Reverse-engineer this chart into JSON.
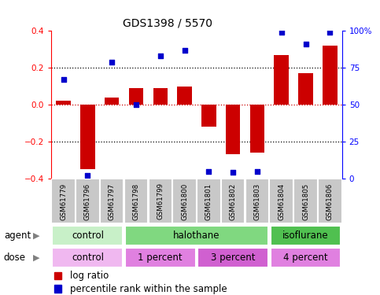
{
  "title": "GDS1398 / 5570",
  "samples": [
    "GSM61779",
    "GSM61796",
    "GSM61797",
    "GSM61798",
    "GSM61799",
    "GSM61800",
    "GSM61801",
    "GSM61802",
    "GSM61803",
    "GSM61804",
    "GSM61805",
    "GSM61806"
  ],
  "log_ratio": [
    0.02,
    -0.35,
    0.04,
    0.09,
    0.09,
    0.1,
    -0.12,
    -0.27,
    -0.26,
    0.27,
    0.17,
    0.32
  ],
  "percentile": [
    67,
    2,
    79,
    50,
    83,
    87,
    5,
    4,
    5,
    99,
    91,
    99
  ],
  "agent_groups": [
    {
      "label": "control",
      "start": 0,
      "end": 3,
      "color": "#c8f0c8"
    },
    {
      "label": "halothane",
      "start": 3,
      "end": 9,
      "color": "#80d880"
    },
    {
      "label": "isoflurane",
      "start": 9,
      "end": 12,
      "color": "#50c050"
    }
  ],
  "dose_groups": [
    {
      "label": "control",
      "start": 0,
      "end": 3,
      "color": "#f0b8f0"
    },
    {
      "label": "1 percent",
      "start": 3,
      "end": 6,
      "color": "#e080e0"
    },
    {
      "label": "3 percent",
      "start": 6,
      "end": 9,
      "color": "#d060d0"
    },
    {
      "label": "4 percent",
      "start": 9,
      "end": 12,
      "color": "#e080e0"
    }
  ],
  "bar_color": "#cc0000",
  "dot_color": "#0000cc",
  "ylim": [
    -0.4,
    0.4
  ],
  "yticks_left": [
    -0.4,
    -0.2,
    0.0,
    0.2,
    0.4
  ],
  "right_yticks": [
    0,
    25,
    50,
    75,
    100
  ],
  "hlines": [
    0.2,
    0.0,
    -0.2
  ],
  "title_fontsize": 10,
  "tick_fontsize": 7.5,
  "label_fontsize": 8.5
}
